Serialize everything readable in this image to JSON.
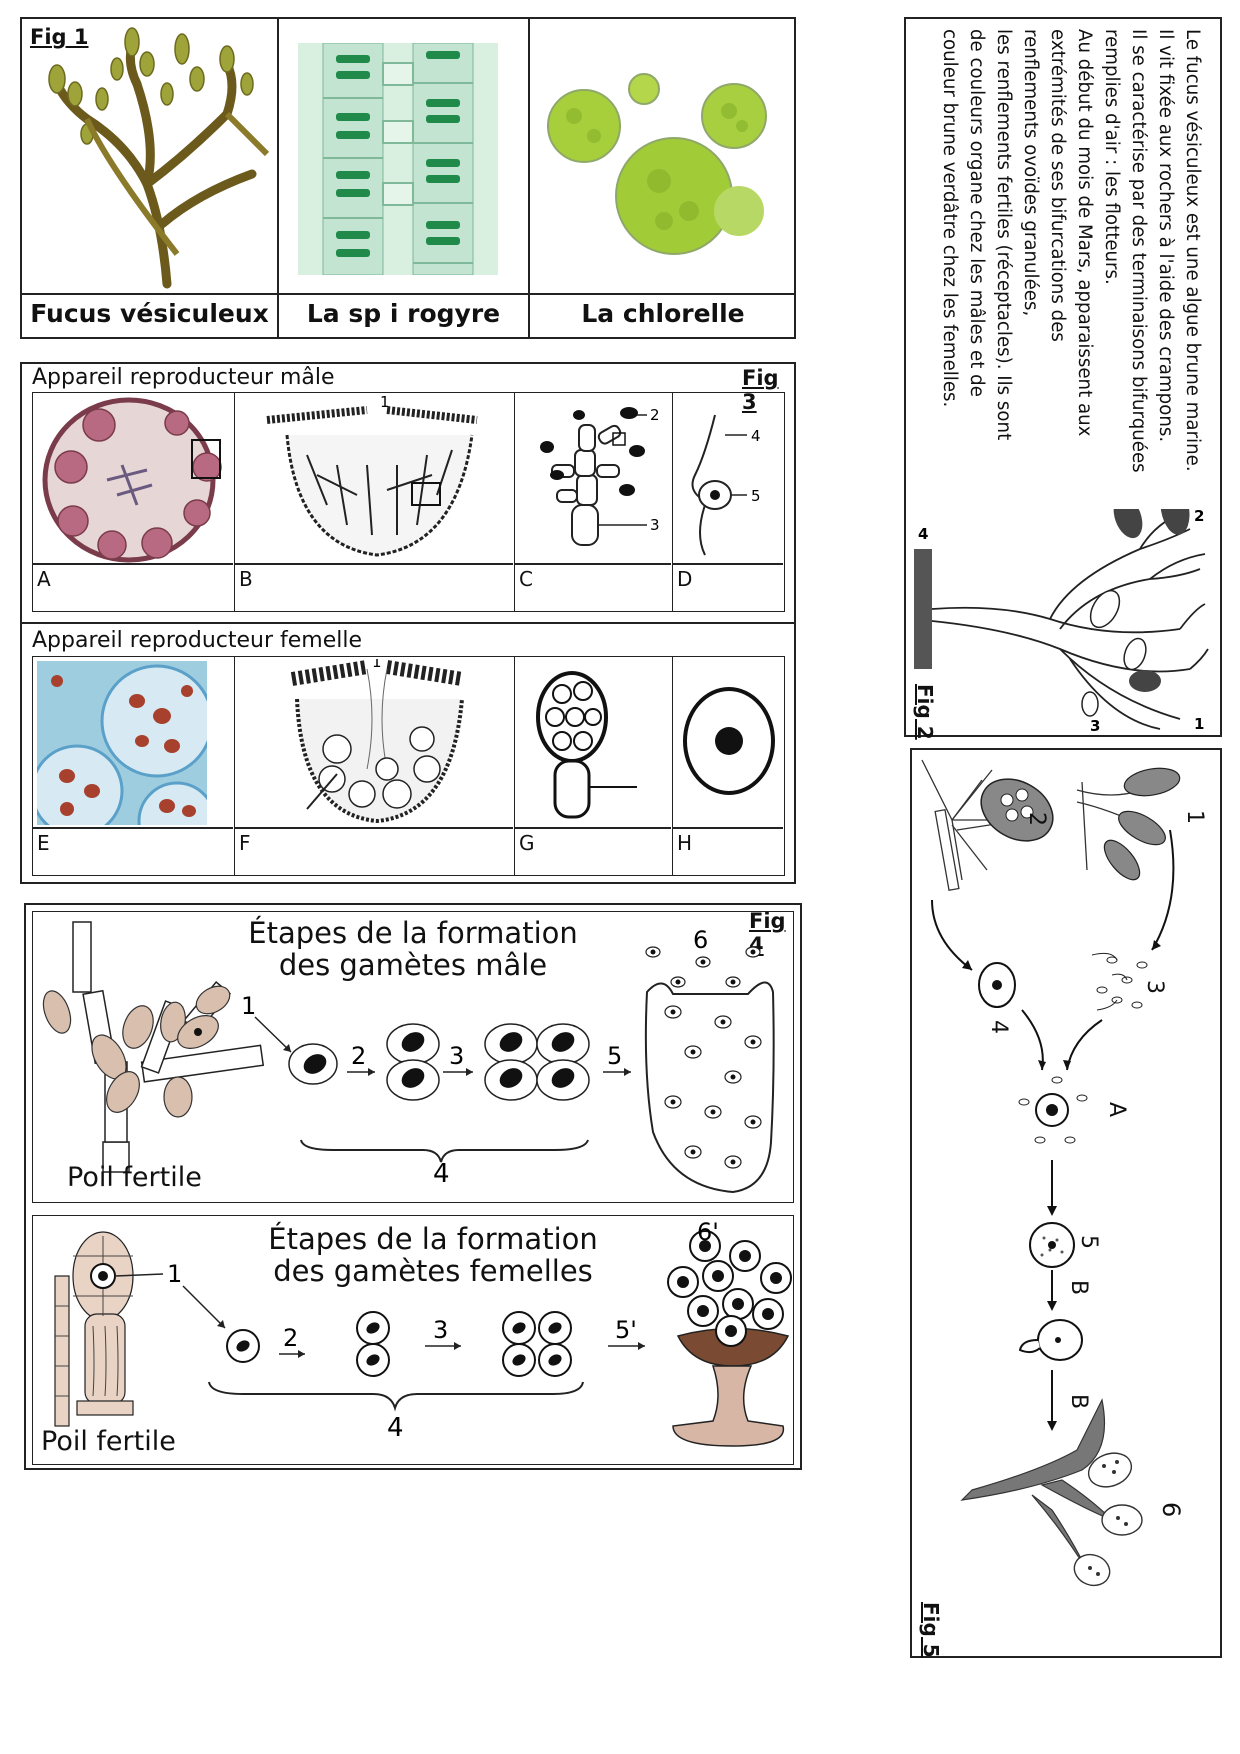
{
  "fig1": {
    "tag": "Fig 1",
    "captions": [
      "Fucus vésiculeux",
      "La sp i rogyre",
      "La chlorelle"
    ]
  },
  "fig2": {
    "tag": "Fig 2",
    "text_lines": [
      "Le fucus vésiculeux est une algue brune marine.",
      "Il vit fixée aux rochers à l'aide des crampons.",
      "Il se caractérise par des terminaisons bifurquées",
      "remplies d'air : les flotteurs.",
      "Au début du mois de Mars, apparaissent aux",
      "extrémités de ses bifurcations des",
      "renflements ovoïdes granulées,",
      "les renflements fertiles (réceptacles). Ils sont",
      "de couleurs organe chez les mâles et de",
      "couleur brune verdâtre chez les femelles."
    ],
    "labels": [
      "1",
      "2",
      "3",
      "4"
    ]
  },
  "fig3": {
    "tag": "Fig 3",
    "male_header": "Appareil reproducteur mâle",
    "female_header": "Appareil reproducteur femelle",
    "male_cells": [
      "A",
      "B",
      "C",
      "D"
    ],
    "female_cells": [
      "E",
      "F",
      "G",
      "H"
    ],
    "male_numbers": [
      "1",
      "2",
      "3",
      "4",
      "5"
    ],
    "female_number": "1"
  },
  "fig4": {
    "tag": "Fig 4",
    "male_title_1": "Étapes de la formation",
    "male_title_2": "des gamètes mâle",
    "female_title_1": "Étapes de la formation",
    "female_title_2": "des gamètes femelles",
    "poil_label": "Poil fertile",
    "male_steps": [
      "1",
      "2",
      "3",
      "4",
      "5",
      "6"
    ],
    "female_steps": [
      "1",
      "2",
      "3",
      "4",
      "5'",
      "6'"
    ]
  },
  "fig5": {
    "tag": "Fig 5",
    "labels": [
      "1",
      "2",
      "3",
      "4",
      "A",
      "5",
      "B",
      "B",
      "6"
    ]
  }
}
